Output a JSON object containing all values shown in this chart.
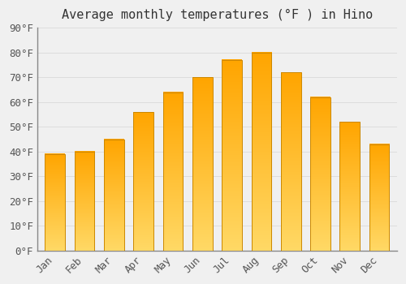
{
  "title": "Average monthly temperatures (°F ) in Hino",
  "months": [
    "Jan",
    "Feb",
    "Mar",
    "Apr",
    "May",
    "Jun",
    "Jul",
    "Aug",
    "Sep",
    "Oct",
    "Nov",
    "Dec"
  ],
  "values": [
    39,
    40,
    45,
    56,
    64,
    70,
    77,
    80,
    72,
    62,
    52,
    43
  ],
  "bar_color_top": "#FFA500",
  "bar_color_bottom": "#FFD966",
  "bar_edge_color": "#CC8800",
  "ylim": [
    0,
    90
  ],
  "yticks": [
    0,
    10,
    20,
    30,
    40,
    50,
    60,
    70,
    80,
    90
  ],
  "background_color": "#F0F0F0",
  "grid_color": "#DDDDDD",
  "title_fontsize": 11,
  "tick_fontsize": 9,
  "font_family": "monospace"
}
